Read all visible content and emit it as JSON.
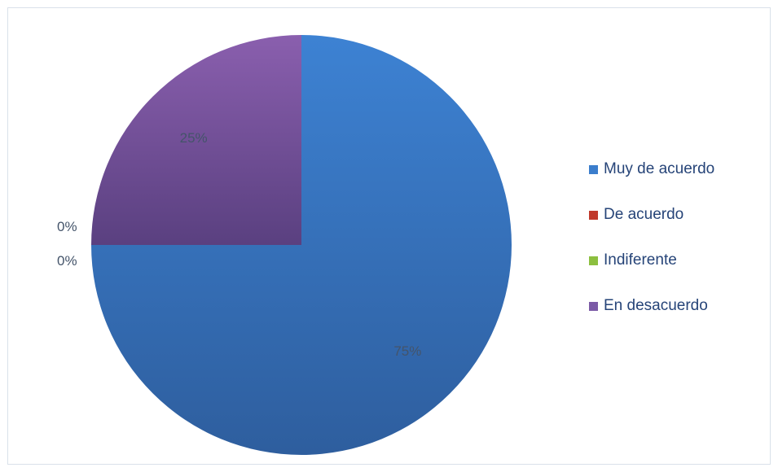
{
  "chart_data": {
    "type": "pie",
    "categories": [
      "Muy de acuerdo",
      "De acuerdo",
      "Indiferente",
      "En desacuerdo"
    ],
    "values": [
      75,
      0,
      0,
      25
    ],
    "data_labels": [
      "75%",
      "0%",
      "0%",
      "25%"
    ],
    "colors": [
      "#3b7dcc",
      "#c0392b",
      "#8cbf3f",
      "#7b5aa6"
    ],
    "start_angle_deg": 0,
    "direction": "clockwise",
    "legend_position": "right",
    "title": ""
  }
}
